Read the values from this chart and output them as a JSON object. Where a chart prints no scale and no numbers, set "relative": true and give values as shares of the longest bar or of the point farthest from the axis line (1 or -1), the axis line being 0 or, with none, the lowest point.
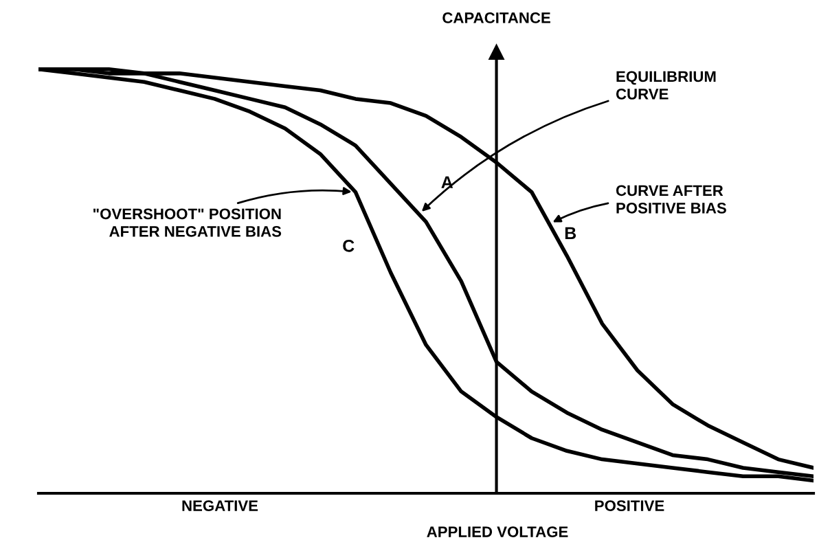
{
  "chart_data": {
    "type": "line",
    "relative": true,
    "ylabel": "CAPACITANCE",
    "xlabel": "APPLIED VOLTAGE",
    "categories": [
      null,
      null,
      null,
      null,
      null,
      null,
      null,
      null,
      null,
      null,
      null,
      null,
      null,
      null,
      null,
      null,
      null,
      null,
      null,
      null,
      null,
      null,
      null
    ],
    "series": [
      {
        "name": "A",
        "color": "#000000",
        "values": [
          1.0,
          1.0,
          0.99,
          0.99,
          0.97,
          0.95,
          0.93,
          0.91,
          0.87,
          0.82,
          0.73,
          0.64,
          0.5,
          0.31,
          0.24,
          0.19,
          0.15,
          0.12,
          0.09,
          0.08,
          0.06,
          0.05,
          0.04
        ]
      },
      {
        "name": "B",
        "color": "#000000",
        "values": [
          1.0,
          1.0,
          1.0,
          0.99,
          0.99,
          0.98,
          0.97,
          0.96,
          0.95,
          0.93,
          0.92,
          0.89,
          0.84,
          0.78,
          0.71,
          0.56,
          0.4,
          0.29,
          0.21,
          0.16,
          0.12,
          0.08,
          0.06
        ]
      },
      {
        "name": "C",
        "color": "#000000",
        "values": [
          1.0,
          0.99,
          0.98,
          0.97,
          0.95,
          0.93,
          0.9,
          0.86,
          0.8,
          0.71,
          0.52,
          0.35,
          0.24,
          0.18,
          0.13,
          0.1,
          0.08,
          0.07,
          0.06,
          0.05,
          0.04,
          0.04,
          0.03
        ]
      }
    ],
    "annotations": [
      "EQUILIBRIUM\nCURVE",
      "CURVE AFTER\nPOSITIVE BIAS",
      "\"OVERSHOOT\" POSITION\nAFTER NEGATIVE BIAS",
      "NEGATIVE",
      "POSITIVE"
    ]
  }
}
